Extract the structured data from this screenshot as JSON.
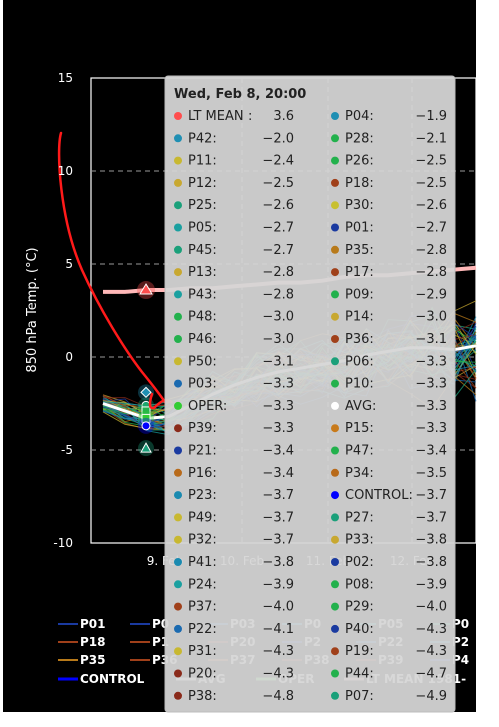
{
  "chart_data": {
    "type": "line",
    "ylabel": "850 hPa Temp. (°C)",
    "ylim": [
      -10,
      15
    ],
    "yticks": [
      15,
      10,
      5,
      0,
      -5,
      -10
    ],
    "x_tick_labels": [
      "9. Feb",
      "10. Feb",
      "11. Feb",
      "12. Feb"
    ],
    "grid": true,
    "background": "#000000",
    "lt_mean_values": [
      3.5,
      3.5,
      3.6,
      3.6,
      3.7,
      3.7,
      3.8,
      3.9,
      4.0,
      4.0,
      4.1,
      4.3,
      4.4,
      4.4,
      4.5,
      4.6,
      4.7,
      4.8
    ],
    "avg_values": [
      -2.5,
      -2.9,
      -3.3,
      -3.2,
      -2.6,
      -2.0,
      -1.5,
      -1.1,
      -0.8,
      -0.6,
      -0.4,
      -0.2,
      0.1,
      0.3,
      0.5,
      0.5,
      0.4,
      0.6
    ],
    "tooltip": {
      "title": "Wed, Feb 8, 20:00",
      "rows": [
        [
          {
            "name": "LT MEAN",
            "sep": " :",
            "value": "3.6",
            "color": "#ff4d4d"
          },
          {
            "name": "P04:",
            "value": "-1.9",
            "color": "#1f8fb3"
          }
        ],
        [
          {
            "name": "P42:",
            "value": "-2.0",
            "color": "#1f8fb3"
          },
          {
            "name": "P28:",
            "value": "-2.1",
            "color": "#22b14c"
          }
        ],
        [
          {
            "name": "P11:",
            "value": "-2.4",
            "color": "#c8b830"
          },
          {
            "name": "P26:",
            "value": "-2.5",
            "color": "#22b14c"
          }
        ],
        [
          {
            "name": "P12:",
            "value": "-2.5",
            "color": "#c8a830"
          },
          {
            "name": "P18:",
            "value": "-2.5",
            "color": "#a0401a"
          }
        ],
        [
          {
            "name": "P25:",
            "value": "-2.6",
            "color": "#1aa07a"
          },
          {
            "name": "P30:",
            "value": "-2.6",
            "color": "#c8c030"
          }
        ],
        [
          {
            "name": "P05:",
            "value": "-2.7",
            "color": "#1aa0a0"
          },
          {
            "name": "P01:",
            "value": "-2.7",
            "color": "#1a3aa0"
          }
        ],
        [
          {
            "name": "P45:",
            "value": "-2.7",
            "color": "#1aa07a"
          },
          {
            "name": "P35:",
            "value": "-2.8",
            "color": "#b87a1a"
          }
        ],
        [
          {
            "name": "P13:",
            "value": "-2.8",
            "color": "#c8a830"
          },
          {
            "name": "P17:",
            "value": "-2.8",
            "color": "#a0401a"
          }
        ],
        [
          {
            "name": "P43:",
            "value": "-2.8",
            "color": "#1aa0a0"
          },
          {
            "name": "P09:",
            "value": "-2.9",
            "color": "#22b14c"
          }
        ],
        [
          {
            "name": "P48:",
            "value": "-3.0",
            "color": "#22b14c"
          },
          {
            "name": "P14:",
            "value": "-3.0",
            "color": "#c8a830"
          }
        ],
        [
          {
            "name": "P46:",
            "value": "-3.0",
            "color": "#22b14c"
          },
          {
            "name": "P36:",
            "value": "-3.1",
            "color": "#a0401a"
          }
        ],
        [
          {
            "name": "P50:",
            "value": "-3.1",
            "color": "#c8b830"
          },
          {
            "name": "P06:",
            "value": "-3.3",
            "color": "#1aa07a"
          }
        ],
        [
          {
            "name": "P03:",
            "value": "-3.3",
            "color": "#1a6ab0"
          },
          {
            "name": "P10:",
            "value": "-3.3",
            "color": "#22b14c"
          }
        ],
        [
          {
            "name": "OPER:",
            "value": "-3.3",
            "color": "#33cc33"
          },
          {
            "name": "AVG:",
            "value": "-3.3",
            "color": "#ffffff"
          }
        ],
        [
          {
            "name": "P39:",
            "value": "-3.3",
            "color": "#8a2a1a"
          },
          {
            "name": "P15:",
            "value": "-3.3",
            "color": "#c87a1a"
          }
        ],
        [
          {
            "name": "P21:",
            "value": "-3.4",
            "color": "#1a3aa0"
          },
          {
            "name": "P47:",
            "value": "-3.4",
            "color": "#22b14c"
          }
        ],
        [
          {
            "name": "P16:",
            "value": "-3.4",
            "color": "#b86a1a"
          },
          {
            "name": "P34:",
            "value": "-3.5",
            "color": "#b86a1a"
          }
        ],
        [
          {
            "name": "P23:",
            "value": "-3.7",
            "color": "#1a8ab0"
          },
          {
            "name": "CONTROL:",
            "value": "-3.7",
            "color": "#0000ff"
          }
        ],
        [
          {
            "name": "P49:",
            "value": "-3.7",
            "color": "#c8b830"
          },
          {
            "name": "P27:",
            "value": "-3.7",
            "color": "#1aa07a"
          }
        ],
        [
          {
            "name": "P32:",
            "value": "-3.7",
            "color": "#c8b830"
          },
          {
            "name": "P33:",
            "value": "-3.8",
            "color": "#c8a830"
          }
        ],
        [
          {
            "name": "P41:",
            "value": "-3.8",
            "color": "#1a8ab0"
          },
          {
            "name": "P02:",
            "value": "-3.8",
            "color": "#1a3aa0"
          }
        ],
        [
          {
            "name": "P24:",
            "value": "-3.9",
            "color": "#1aa0a0"
          },
          {
            "name": "P08:",
            "value": "-3.9",
            "color": "#22b14c"
          }
        ],
        [
          {
            "name": "P37:",
            "value": "-4.0",
            "color": "#a0401a"
          },
          {
            "name": "P29:",
            "value": "-4.0",
            "color": "#22b14c"
          }
        ],
        [
          {
            "name": "P22:",
            "value": "-4.1",
            "color": "#1a6ab0"
          },
          {
            "name": "P40:",
            "value": "-4.3",
            "color": "#1a3aa0"
          }
        ],
        [
          {
            "name": "P31:",
            "value": "-4.3",
            "color": "#c8b830"
          },
          {
            "name": "P19:",
            "value": "-4.3",
            "color": "#a0401a"
          }
        ],
        [
          {
            "name": "P20:",
            "value": "-4.3",
            "color": "#8a2a1a"
          },
          {
            "name": "P44:",
            "value": "-4.7",
            "color": "#22b14c"
          }
        ],
        [
          {
            "name": "P38:",
            "value": "-4.8",
            "color": "#8a2a1a"
          },
          {
            "name": "P07:",
            "value": "-4.9",
            "color": "#1aa07a"
          }
        ]
      ]
    },
    "legend": {
      "rows": [
        [
          {
            "label": "P01",
            "color": "#1a3aa0"
          },
          {
            "label": "P0",
            "color": "#1a3aa0"
          },
          {
            "label": "P03",
            "color": "#1a6ab0"
          },
          {
            "label": "P0",
            "color": "#1a8ab0"
          },
          {
            "label": "P05",
            "color": "#1aa0a0"
          },
          {
            "label": "P0",
            "color": "#1aa07a"
          }
        ],
        [
          {
            "label": "P18",
            "color": "#a0401a"
          },
          {
            "label": "P1",
            "color": "#a0401a"
          },
          {
            "label": "P20",
            "color": "#8a2a1a"
          },
          {
            "label": "P2",
            "color": "#1a3aa0"
          },
          {
            "label": "P22",
            "color": "#1a6ab0"
          },
          {
            "label": "P2",
            "color": "#1a8ab0"
          }
        ],
        [
          {
            "label": "P35",
            "color": "#b87a1a"
          },
          {
            "label": "P36",
            "color": "#a0401a"
          },
          {
            "label": "P37",
            "color": "#a0401a"
          },
          {
            "label": "P38",
            "color": "#8a2a1a"
          },
          {
            "label": "P39",
            "color": "#8a2a1a"
          },
          {
            "label": "P4",
            "color": "#1a3aa0"
          }
        ],
        [
          {
            "label": "CONTROL",
            "color": "#0000ff"
          },
          {
            "label": "AVG",
            "color": "#ffffff"
          },
          {
            "label": "OPER",
            "color": "#66ff66"
          },
          {
            "label": "LT MEAN 1981-",
            "color": "#ffb0b0"
          }
        ]
      ]
    }
  }
}
